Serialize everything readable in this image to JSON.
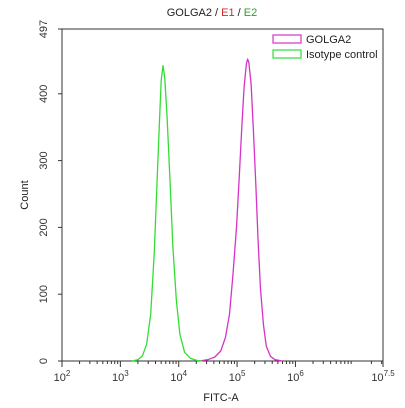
{
  "chart_data": {
    "type": "line",
    "title": {
      "parts": [
        {
          "text": "GOLGA2",
          "color": "#222222"
        },
        {
          "text": " / ",
          "color": "#222222"
        },
        {
          "text": "E1",
          "color": "#d62728"
        },
        {
          "text": " / ",
          "color": "#222222"
        },
        {
          "text": "E2",
          "color": "#2ca02c"
        }
      ]
    },
    "xlabel": "FITC-A",
    "ylabel": "Count",
    "x_scale": "log10",
    "xlim": [
      2,
      7.5
    ],
    "ylim": [
      0,
      497
    ],
    "x_ticks": [
      {
        "base": "10",
        "exp": "2"
      },
      {
        "base": "10",
        "exp": "3"
      },
      {
        "base": "10",
        "exp": "4"
      },
      {
        "base": "10",
        "exp": "5"
      },
      {
        "base": "10",
        "exp": "6"
      },
      {
        "base": "10",
        "exp": "7.5"
      }
    ],
    "y_ticks": [
      "0",
      "100",
      "200",
      "300",
      "400",
      "497"
    ],
    "grid": false,
    "legend_position": "top-right",
    "series": [
      {
        "name": "GOLGA2",
        "color": "#d633c8",
        "peak_x_log10": 5.18,
        "peak_count": 452,
        "points": [
          [
            4.35,
            0
          ],
          [
            4.5,
            2
          ],
          [
            4.62,
            6
          ],
          [
            4.72,
            15
          ],
          [
            4.8,
            35
          ],
          [
            4.87,
            70
          ],
          [
            4.93,
            130
          ],
          [
            4.99,
            200
          ],
          [
            5.04,
            280
          ],
          [
            5.08,
            350
          ],
          [
            5.12,
            410
          ],
          [
            5.16,
            445
          ],
          [
            5.18,
            452
          ],
          [
            5.2,
            447
          ],
          [
            5.24,
            415
          ],
          [
            5.28,
            345
          ],
          [
            5.32,
            265
          ],
          [
            5.36,
            180
          ],
          [
            5.4,
            110
          ],
          [
            5.45,
            55
          ],
          [
            5.5,
            22
          ],
          [
            5.57,
            7
          ],
          [
            5.65,
            2
          ],
          [
            5.78,
            0
          ]
        ]
      },
      {
        "name": "Isotype control",
        "color": "#33dd33",
        "peak_x_log10": 3.73,
        "peak_count": 442,
        "points": [
          [
            3.2,
            0
          ],
          [
            3.3,
            2
          ],
          [
            3.38,
            8
          ],
          [
            3.45,
            25
          ],
          [
            3.52,
            70
          ],
          [
            3.58,
            160
          ],
          [
            3.63,
            270
          ],
          [
            3.67,
            360
          ],
          [
            3.7,
            420
          ],
          [
            3.73,
            442
          ],
          [
            3.76,
            425
          ],
          [
            3.8,
            365
          ],
          [
            3.85,
            270
          ],
          [
            3.9,
            170
          ],
          [
            3.96,
            90
          ],
          [
            4.02,
            40
          ],
          [
            4.1,
            13
          ],
          [
            4.2,
            4
          ],
          [
            4.3,
            1
          ],
          [
            4.4,
            0
          ]
        ]
      }
    ]
  }
}
